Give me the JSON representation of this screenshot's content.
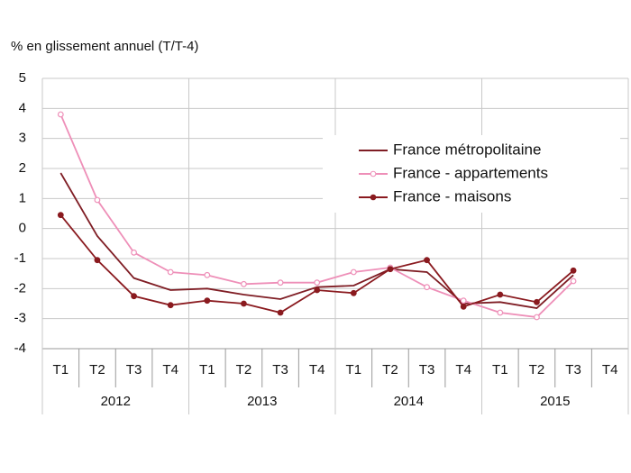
{
  "chart_data": {
    "type": "line",
    "y_label": "% en glissement annuel (T/T-4)",
    "categories": [
      "T1",
      "T2",
      "T3",
      "T4",
      "T1",
      "T2",
      "T3",
      "T4",
      "T1",
      "T2",
      "T3",
      "T4",
      "T1",
      "T2",
      "T3",
      "T4"
    ],
    "groups": [
      "2012",
      "2013",
      "2014",
      "2015"
    ],
    "series": [
      {
        "name": "France métropolitaine",
        "color": "#7f1d24",
        "marker": "none",
        "values": [
          1.85,
          -0.25,
          -1.65,
          -2.05,
          -2.0,
          -2.2,
          -2.35,
          -1.95,
          -1.9,
          -1.35,
          -1.45,
          -2.5,
          -2.45,
          -2.65,
          -1.55,
          null
        ]
      },
      {
        "name": "France - appartements",
        "color": "#ee8fb8",
        "marker": "open",
        "values": [
          3.8,
          0.95,
          -0.8,
          -1.45,
          -1.55,
          -1.85,
          -1.8,
          -1.8,
          -1.45,
          -1.3,
          -1.95,
          -2.4,
          -2.8,
          -2.95,
          -1.75,
          null
        ]
      },
      {
        "name": "France - maisons",
        "color": "#8a1a1f",
        "marker": "filled",
        "values": [
          0.45,
          -1.05,
          -2.25,
          -2.55,
          -2.4,
          -2.5,
          -2.8,
          -2.05,
          -2.15,
          -1.35,
          -1.05,
          -2.6,
          -2.2,
          -2.45,
          -1.4,
          null
        ]
      }
    ],
    "ylim": [
      -4,
      5
    ],
    "yticks": [
      -4,
      -3,
      -2,
      -1,
      0,
      1,
      2,
      3,
      4,
      5
    ],
    "grid": true
  }
}
